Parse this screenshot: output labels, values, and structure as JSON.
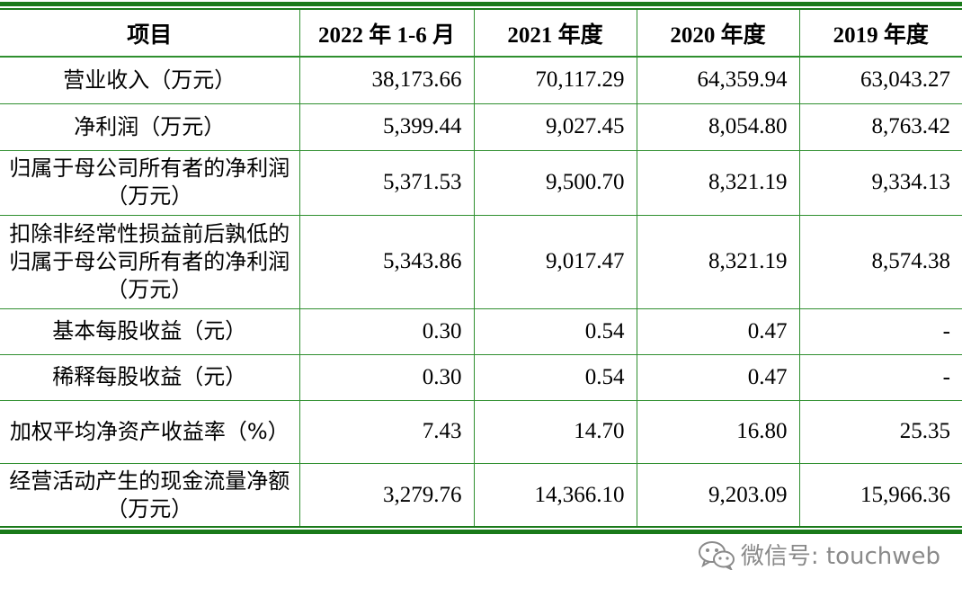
{
  "table": {
    "headers": [
      "项目",
      "2022 年 1-6 月",
      "2021 年度",
      "2020 年度",
      "2019 年度"
    ],
    "rows": [
      {
        "label": "营业收入（万元）",
        "values": [
          "38,173.66",
          "70,117.29",
          "64,359.94",
          "63,043.27"
        ]
      },
      {
        "label": "净利润（万元）",
        "values": [
          "5,399.44",
          "9,027.45",
          "8,054.80",
          "8,763.42"
        ]
      },
      {
        "label": "归属于母公司所有者的净利润（万元）",
        "values": [
          "5,371.53",
          "9,500.70",
          "8,321.19",
          "9,334.13"
        ]
      },
      {
        "label": "扣除非经常性损益前后孰低的归属于母公司所有者的净利润（万元）",
        "values": [
          "5,343.86",
          "9,017.47",
          "8,321.19",
          "8,574.38"
        ]
      },
      {
        "label": "基本每股收益（元）",
        "values": [
          "0.30",
          "0.54",
          "0.47",
          "-"
        ]
      },
      {
        "label": "稀释每股收益（元）",
        "values": [
          "0.30",
          "0.54",
          "0.47",
          "-"
        ]
      },
      {
        "label": "加权平均净资产收益率（%）",
        "values": [
          "7.43",
          "14.70",
          "16.80",
          "25.35"
        ]
      },
      {
        "label": "经营活动产生的现金流量净额（万元）",
        "values": [
          "3,279.76",
          "14,366.10",
          "9,203.09",
          "15,966.36"
        ]
      }
    ]
  },
  "watermark": {
    "text": "微信号: touchweb",
    "icon": "wechat-icon"
  },
  "colors": {
    "rule": "#1a7a1a",
    "grid": "#2f8f2f",
    "watermark": "#8a8a8a"
  }
}
